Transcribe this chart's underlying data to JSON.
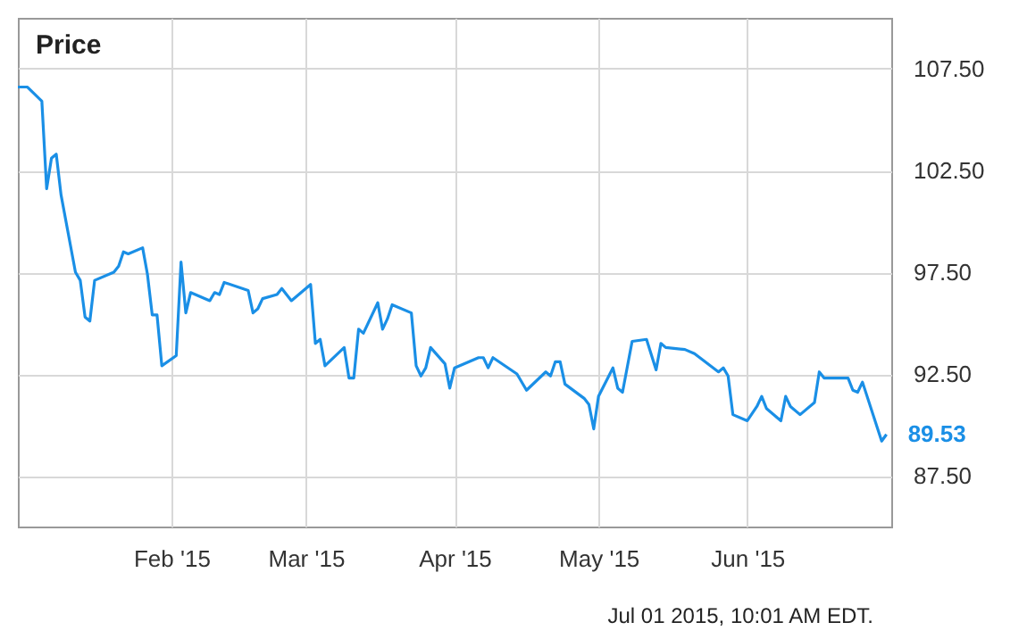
{
  "chart_data": {
    "type": "line",
    "title": "Price",
    "annotations": [
      "Jul 01 2015, 10:01 AM EDT."
    ],
    "x": [
      "2014-12-31",
      "2015-01-02",
      "2015-01-05",
      "2015-01-06",
      "2015-01-07",
      "2015-01-08",
      "2015-01-09",
      "2015-01-12",
      "2015-01-13",
      "2015-01-14",
      "2015-01-15",
      "2015-01-16",
      "2015-01-20",
      "2015-01-21",
      "2015-01-22",
      "2015-01-23",
      "2015-01-26",
      "2015-01-27",
      "2015-01-28",
      "2015-01-29",
      "2015-01-30",
      "2015-02-02",
      "2015-02-03",
      "2015-02-04",
      "2015-02-05",
      "2015-02-09",
      "2015-02-10",
      "2015-02-11",
      "2015-02-12",
      "2015-02-17",
      "2015-02-18",
      "2015-02-19",
      "2015-02-20",
      "2015-02-23",
      "2015-02-24",
      "2015-02-26",
      "2015-03-02",
      "2015-03-03",
      "2015-03-04",
      "2015-03-05",
      "2015-03-09",
      "2015-03-10",
      "2015-03-11",
      "2015-03-12",
      "2015-03-13",
      "2015-03-16",
      "2015-03-17",
      "2015-03-18",
      "2015-03-19",
      "2015-03-23",
      "2015-03-24",
      "2015-03-25",
      "2015-03-26",
      "2015-03-27",
      "2015-03-30",
      "2015-03-31",
      "2015-04-01",
      "2015-04-06",
      "2015-04-07",
      "2015-04-08",
      "2015-04-09",
      "2015-04-14",
      "2015-04-16",
      "2015-04-20",
      "2015-04-21",
      "2015-04-22",
      "2015-04-23",
      "2015-04-24",
      "2015-04-28",
      "2015-04-29",
      "2015-04-30",
      "2015-05-01",
      "2015-05-04",
      "2015-05-05",
      "2015-05-06",
      "2015-05-08",
      "2015-05-11",
      "2015-05-13",
      "2015-05-14",
      "2015-05-15",
      "2015-05-19",
      "2015-05-21",
      "2015-05-26",
      "2015-05-27",
      "2015-05-28",
      "2015-05-29",
      "2015-06-01",
      "2015-06-03",
      "2015-06-04",
      "2015-06-05",
      "2015-06-08",
      "2015-06-09",
      "2015-06-10",
      "2015-06-12",
      "2015-06-15",
      "2015-06-16",
      "2015-06-17",
      "2015-06-22",
      "2015-06-23",
      "2015-06-24",
      "2015-06-25",
      "2015-06-29",
      "2015-06-30"
    ],
    "series": [
      {
        "color": "#1a8fe6",
        "values": [
          106.6,
          106.6,
          105.9,
          101.6,
          103.1,
          103.3,
          101.3,
          97.5,
          97.1,
          95.3,
          95.1,
          97.1,
          97.5,
          97.8,
          98.5,
          98.4,
          98.7,
          97.4,
          95.4,
          95.4,
          92.9,
          93.4,
          98.0,
          95.5,
          96.5,
          96.1,
          96.5,
          96.4,
          97.0,
          96.6,
          95.5,
          95.7,
          96.2,
          96.4,
          96.7,
          96.1,
          96.9,
          94.0,
          94.2,
          92.9,
          93.8,
          92.3,
          92.3,
          94.7,
          94.5,
          96.0,
          94.7,
          95.2,
          95.9,
          95.5,
          92.9,
          92.4,
          92.8,
          93.8,
          93.0,
          91.8,
          92.8,
          93.3,
          93.3,
          92.8,
          93.3,
          92.5,
          91.7,
          92.6,
          92.4,
          93.1,
          93.1,
          92.0,
          91.3,
          91.0,
          89.8,
          91.4,
          92.8,
          91.8,
          91.6,
          94.1,
          94.2,
          92.7,
          94.0,
          93.8,
          93.7,
          93.5,
          92.6,
          92.8,
          92.4,
          90.5,
          90.2,
          90.9,
          91.4,
          90.8,
          90.2,
          91.4,
          90.9,
          90.5,
          91.1,
          92.6,
          92.3,
          92.3,
          91.7,
          91.6,
          92.1,
          89.2,
          89.53
        ],
        "value_labels": [
          null,
          null,
          null,
          null,
          null,
          null,
          null,
          null,
          null,
          null,
          null,
          null,
          null,
          null,
          null,
          null,
          null,
          null,
          null,
          null,
          null,
          null,
          null,
          null,
          null,
          null,
          null,
          null,
          null,
          null,
          null,
          null,
          null,
          null,
          null,
          null,
          null,
          null,
          null,
          null,
          null,
          null,
          null,
          null,
          null,
          null,
          null,
          null,
          null,
          null,
          null,
          null,
          null,
          null,
          null,
          null,
          null,
          null,
          null,
          null,
          null,
          null,
          null,
          null,
          null,
          null,
          null,
          null,
          null,
          null,
          null,
          null,
          null,
          null,
          null,
          null,
          null,
          null,
          null,
          null,
          null,
          null,
          null,
          null,
          null,
          null,
          null,
          null,
          null,
          null,
          null,
          null,
          null,
          null,
          null,
          null,
          null,
          null,
          null,
          null,
          null,
          null,
          "89.53"
        ]
      }
    ],
    "xlim": [
      "2014-12-31",
      "2015-07-01"
    ],
    "xticks": [
      {
        "value": "2015-02-01",
        "label": "Feb '15"
      },
      {
        "value": "2015-03-01",
        "label": "Mar '15"
      },
      {
        "value": "2015-04-01",
        "label": "Apr '15"
      },
      {
        "value": "2015-05-01",
        "label": "May '15"
      },
      {
        "value": "2015-06-01",
        "label": "Jun '15"
      }
    ],
    "ylim": [
      85,
      110
    ],
    "yticks": [
      {
        "value": 87.5,
        "label": "87.50"
      },
      {
        "value": 92.5,
        "label": "92.50"
      },
      {
        "value": 97.5,
        "label": "97.50"
      },
      {
        "value": 102.5,
        "label": "102.50"
      },
      {
        "value": 107.5,
        "label": "107.50"
      }
    ],
    "grid": true,
    "marker": "none",
    "line_style": "solid"
  }
}
